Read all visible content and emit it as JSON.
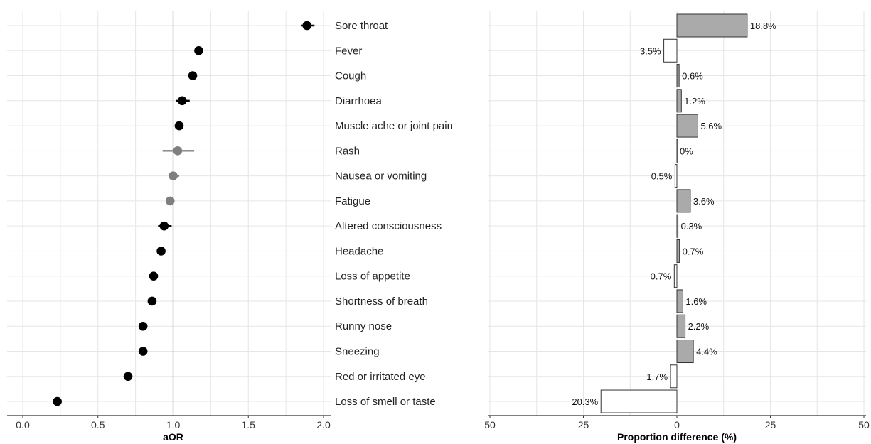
{
  "chart_data": [
    {
      "type": "scatter",
      "subtype": "forest-plot",
      "xlabel": "aOR",
      "xlim": [
        0.0,
        2.0
      ],
      "x_ticks": [
        "0.0",
        "0.5",
        "1.0",
        "1.5",
        "2.0"
      ],
      "reference_line": 1.0,
      "grid": true,
      "categories": [
        "Sore throat",
        "Fever",
        "Cough",
        "Diarrhoea",
        "Muscle ache or joint pain",
        "Rash",
        "Nausea or vomiting",
        "Fatigue",
        "Altered consciousness",
        "Headache",
        "Loss of appetite",
        "Shortness of breath",
        "Runny nose",
        "Sneezing",
        "Red or irritated eye",
        "Loss of smell or taste"
      ],
      "points": [
        {
          "category": "Sore throat",
          "aor": 1.89,
          "lower": 1.85,
          "upper": 1.94,
          "significant": true
        },
        {
          "category": "Fever",
          "aor": 1.17,
          "lower": 1.15,
          "upper": 1.19,
          "significant": true
        },
        {
          "category": "Cough",
          "aor": 1.13,
          "lower": 1.11,
          "upper": 1.15,
          "significant": true
        },
        {
          "category": "Diarrhoea",
          "aor": 1.06,
          "lower": 1.02,
          "upper": 1.11,
          "significant": true
        },
        {
          "category": "Muscle ache or joint pain",
          "aor": 1.04,
          "lower": 1.02,
          "upper": 1.06,
          "significant": true
        },
        {
          "category": "Rash",
          "aor": 1.03,
          "lower": 0.93,
          "upper": 1.14,
          "significant": false
        },
        {
          "category": "Nausea or vomiting",
          "aor": 1.0,
          "lower": 0.97,
          "upper": 1.04,
          "significant": false
        },
        {
          "category": "Fatigue",
          "aor": 0.98,
          "lower": 0.96,
          "upper": 1.0,
          "significant": false
        },
        {
          "category": "Altered consciousness",
          "aor": 0.94,
          "lower": 0.9,
          "upper": 0.99,
          "significant": true
        },
        {
          "category": "Headache",
          "aor": 0.92,
          "lower": 0.9,
          "upper": 0.94,
          "significant": true
        },
        {
          "category": "Loss of appetite",
          "aor": 0.87,
          "lower": 0.85,
          "upper": 0.89,
          "significant": true
        },
        {
          "category": "Shortness of breath",
          "aor": 0.86,
          "lower": 0.84,
          "upper": 0.88,
          "significant": true
        },
        {
          "category": "Runny nose",
          "aor": 0.8,
          "lower": 0.78,
          "upper": 0.82,
          "significant": true
        },
        {
          "category": "Sneezing",
          "aor": 0.8,
          "lower": 0.78,
          "upper": 0.82,
          "significant": true
        },
        {
          "category": "Red or irritated eye",
          "aor": 0.7,
          "lower": 0.68,
          "upper": 0.72,
          "significant": true
        },
        {
          "category": "Loss of smell or taste",
          "aor": 0.23,
          "lower": 0.22,
          "upper": 0.24,
          "significant": true
        }
      ],
      "colors": {
        "significant": "#000000",
        "non_significant": "#7f7f7f"
      }
    },
    {
      "type": "bar",
      "orientation": "horizontal",
      "xlabel": "Proportion difference (%)",
      "xlim": [
        -50,
        50
      ],
      "x_ticks": [
        "50",
        "25",
        "0",
        "25",
        "50"
      ],
      "grid": true,
      "categories": [
        "Sore throat",
        "Fever",
        "Cough",
        "Diarrhoea",
        "Muscle ache or joint pain",
        "Rash",
        "Nausea or vomiting",
        "Fatigue",
        "Altered consciousness",
        "Headache",
        "Loss of appetite",
        "Shortness of breath",
        "Runny nose",
        "Sneezing",
        "Red or irritated eye",
        "Loss of smell or taste"
      ],
      "values": [
        18.8,
        -3.5,
        0.6,
        1.2,
        5.6,
        0.0,
        -0.5,
        3.6,
        0.3,
        0.7,
        -0.7,
        1.6,
        2.2,
        4.4,
        -1.7,
        -20.3
      ],
      "labels": [
        "18.8%",
        "3.5%",
        "0.6%",
        "1.2%",
        "5.6%",
        "0%",
        "0.5%",
        "3.6%",
        "0.3%",
        "0.7%",
        "0.7%",
        "1.6%",
        "2.2%",
        "4.4%",
        "1.7%",
        "20.3%"
      ],
      "colors": {
        "positive": "#aaaaaa",
        "negative": "#ffffff",
        "border": "#333333"
      }
    }
  ]
}
